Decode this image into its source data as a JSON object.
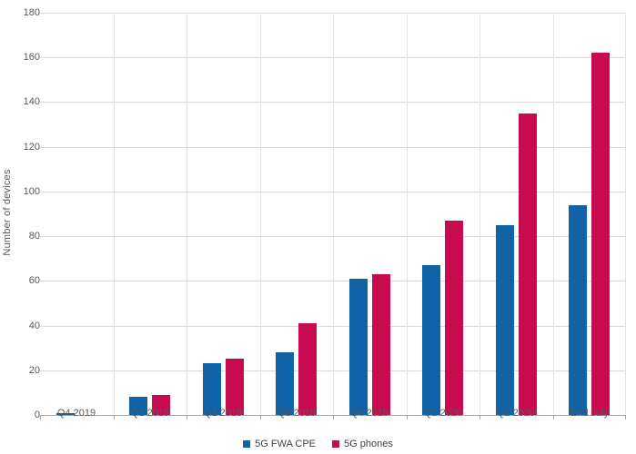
{
  "chart_data": {
    "type": "bar",
    "ylabel": "Number of devices",
    "xlabel": "",
    "categories": [
      "Q4 2019",
      "Q1 2019",
      "Q2 2019",
      "Q3 2019",
      "Q4 2019",
      "Q1 2020",
      "Q2 2020",
      "End July"
    ],
    "series": [
      {
        "name": "5G FWA CPE",
        "color": "#0F63A6",
        "values": [
          1,
          8,
          23,
          28,
          61,
          67,
          85,
          94
        ]
      },
      {
        "name": "5G phones",
        "color": "#C80B51",
        "values": [
          0,
          9,
          25,
          41,
          63,
          87,
          135,
          162
        ]
      }
    ],
    "ylim": [
      0,
      180
    ],
    "ytick_step": 20,
    "grid": true,
    "legend_position": "bottom"
  },
  "colors": {
    "gridline": "#d9d9d9",
    "axis_line": "#a6a6a6",
    "separator": "#e3e3e3",
    "tick_text": "#595959",
    "legend_text": "#404040"
  }
}
